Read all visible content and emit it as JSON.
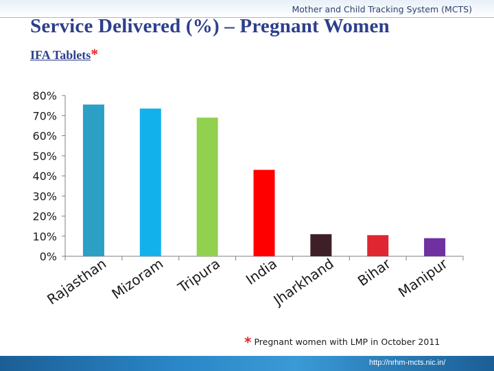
{
  "header": {
    "system_name": "Mother and Child Tracking System (MCTS)",
    "title": "Service Delivered (%) – Pregnant Women",
    "subtitle": "IFA Tablets",
    "subtitle_marker": "*"
  },
  "chart_data": {
    "type": "bar",
    "title": "IFA Tablets",
    "xlabel": "",
    "ylabel": "",
    "ylim": [
      0,
      80
    ],
    "y_ticks": [
      "0%",
      "10%",
      "20%",
      "30%",
      "40%",
      "50%",
      "60%",
      "70%",
      "80%"
    ],
    "grid": false,
    "categories": [
      "Rajasthan",
      "Mizoram",
      "Tripura",
      "India",
      "Jharkhand",
      "Bihar",
      "Manipur"
    ],
    "values": [
      75.5,
      73.5,
      69,
      43,
      11,
      10.5,
      9
    ],
    "colors": [
      "#2ba0c4",
      "#13b1ec",
      "#92d050",
      "#ff0000",
      "#3f1f27",
      "#e02630",
      "#7030a0"
    ]
  },
  "footnote": {
    "marker": "*",
    "text": "Pregnant women with LMP in October 2011"
  },
  "footer": {
    "url": "http://nrhm-mcts.nic.in/"
  }
}
